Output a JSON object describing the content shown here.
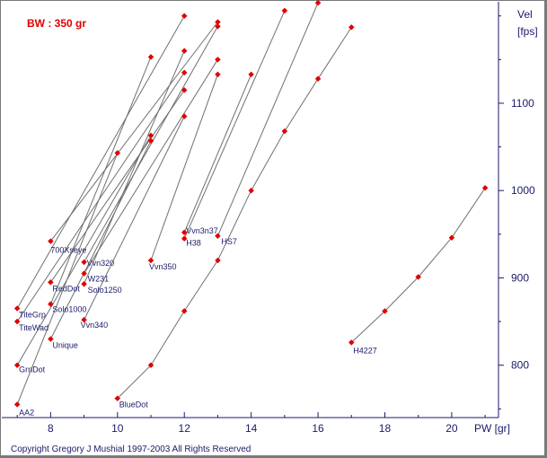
{
  "colors": {
    "line": "#707070",
    "point": "#e00000",
    "axis": "#1a1a6a",
    "bw": "#e00000"
  },
  "chart_data": {
    "type": "line",
    "title": "",
    "bullet_weight_label": "BW : 350 gr",
    "copyright": "Copyright Gregory J  Mushial 1997-2003     All Rights Reserved",
    "xlabel": "PW [gr]",
    "ylabel_line1": "Vel",
    "ylabel_line2": "[fps]",
    "xlim": [
      6.7,
      21.4
    ],
    "ylim": [
      740,
      1210
    ],
    "x_ticks": [
      8,
      10,
      12,
      14,
      16,
      18,
      20
    ],
    "y_ticks": [
      800,
      900,
      1000,
      1100
    ],
    "grid": false,
    "series": [
      {
        "name": "AA2",
        "x": [
          7,
          10
        ],
        "y": [
          755,
          1043
        ]
      },
      {
        "name": "GrnDot",
        "x": [
          7,
          11
        ],
        "y": [
          800,
          1063
        ]
      },
      {
        "name": "TiteWad",
        "x": [
          7,
          12
        ],
        "y": [
          850,
          1135
        ]
      },
      {
        "name": "TiteGrp",
        "x": [
          7,
          12
        ],
        "y": [
          865,
          1200
        ]
      },
      {
        "name": "Unique",
        "x": [
          8,
          11
        ],
        "y": [
          830,
          1057
        ]
      },
      {
        "name": "RedDot",
        "x": [
          8,
          12
        ],
        "y": [
          895,
          1115
        ]
      },
      {
        "name": "Solo1000",
        "x": [
          8,
          11
        ],
        "y": [
          870,
          1153
        ]
      },
      {
        "name": "700Xseye",
        "x": [
          8,
          13
        ],
        "y": [
          942,
          1193
        ]
      },
      {
        "name": "Vvn340",
        "x": [
          9,
          12
        ],
        "y": [
          852,
          1085
        ]
      },
      {
        "name": "Solo1250",
        "x": [
          9,
          12
        ],
        "y": [
          893,
          1160
        ]
      },
      {
        "name": "W231",
        "x": [
          9,
          13
        ],
        "y": [
          905,
          1150
        ]
      },
      {
        "name": "Vvn320",
        "x": [
          9,
          13
        ],
        "y": [
          918,
          1188
        ]
      },
      {
        "name": "Vvn350",
        "x": [
          11,
          13
        ],
        "y": [
          920,
          1133
        ]
      },
      {
        "name": "H38",
        "x": [
          12,
          15
        ],
        "y": [
          945,
          1206
        ]
      },
      {
        "name": "Vvn3n37",
        "x": [
          12,
          14
        ],
        "y": [
          952,
          1133
        ]
      },
      {
        "name": "HS7",
        "x": [
          13,
          16
        ],
        "y": [
          948,
          1215
        ]
      },
      {
        "name": "BlueDot",
        "x": [
          10,
          11,
          12,
          13,
          14,
          15,
          16,
          17
        ],
        "y": [
          762,
          800,
          862,
          920,
          1000,
          1068,
          1128,
          1187
        ]
      },
      {
        "name": "H4227",
        "x": [
          17,
          18,
          19,
          20,
          21
        ],
        "y": [
          826,
          862,
          901,
          946,
          1003
        ]
      }
    ]
  }
}
